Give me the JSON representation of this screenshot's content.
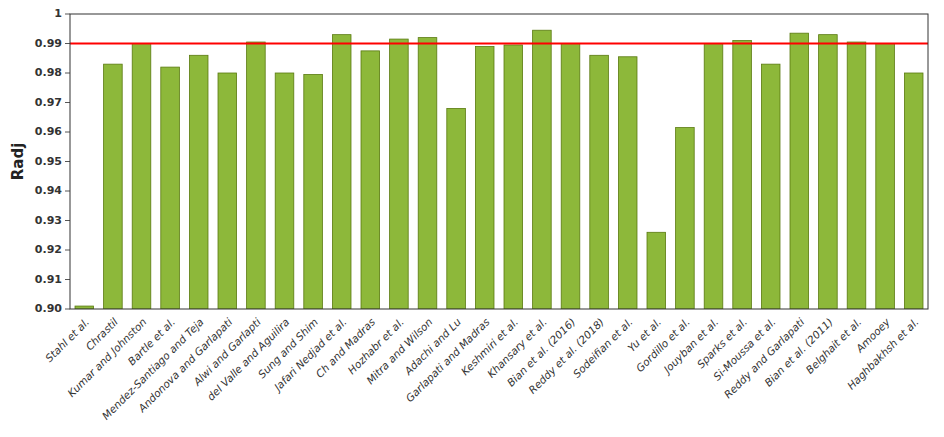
{
  "chart_data": {
    "type": "bar",
    "ylabel": "Radj",
    "categories": [
      "Stahl et al.",
      "Chrastil",
      "Kumar and Johnston",
      "Bartle et al.",
      "Mendez-Santiago and Teja",
      "Andonova and Garlapati",
      "Alwi and Garlapti",
      "del Valle and Aguilira",
      "Sung and Shim",
      "Jafari Nedjad et al.",
      "Ch and Madras",
      "Hozhabr et al.",
      "Mitra and Wilson",
      "Adachi and Lu",
      "Garlapati and Madras",
      "Keshmiri et al.",
      "Khansary et al.",
      "Bian et al. (2016)",
      "Reddy et al. (2018)",
      "Sodeifian et al.",
      "Yu et al.",
      "Gordillo et al.",
      "Jouyban et al.",
      "Sparks et al.",
      "Si-Moussa et al.",
      "Reddy and Garlapati",
      "Bian et al. (2011)",
      "Belghait et al.",
      "Amooey",
      "Haghbakhsh et al."
    ],
    "values": [
      0.901,
      0.983,
      0.99,
      0.982,
      0.986,
      0.98,
      0.9905,
      0.98,
      0.9795,
      0.993,
      0.9875,
      0.9915,
      0.992,
      0.968,
      0.989,
      0.9895,
      0.9945,
      0.99,
      0.986,
      0.9855,
      0.926,
      0.9615,
      0.99,
      0.991,
      0.983,
      0.9935,
      0.993,
      0.9905,
      0.99,
      0.98
    ],
    "color": "#8db83a",
    "reference_line": {
      "value": 0.99,
      "color": "#ff0000"
    },
    "ylim": [
      0.9,
      1.0
    ],
    "yticks": [
      {
        "value": 0.9,
        "label": "0.90"
      },
      0.91,
      0.92,
      0.93,
      0.94,
      0.95,
      0.96,
      0.97,
      0.98,
      0.99,
      1
    ],
    "grid": false
  }
}
